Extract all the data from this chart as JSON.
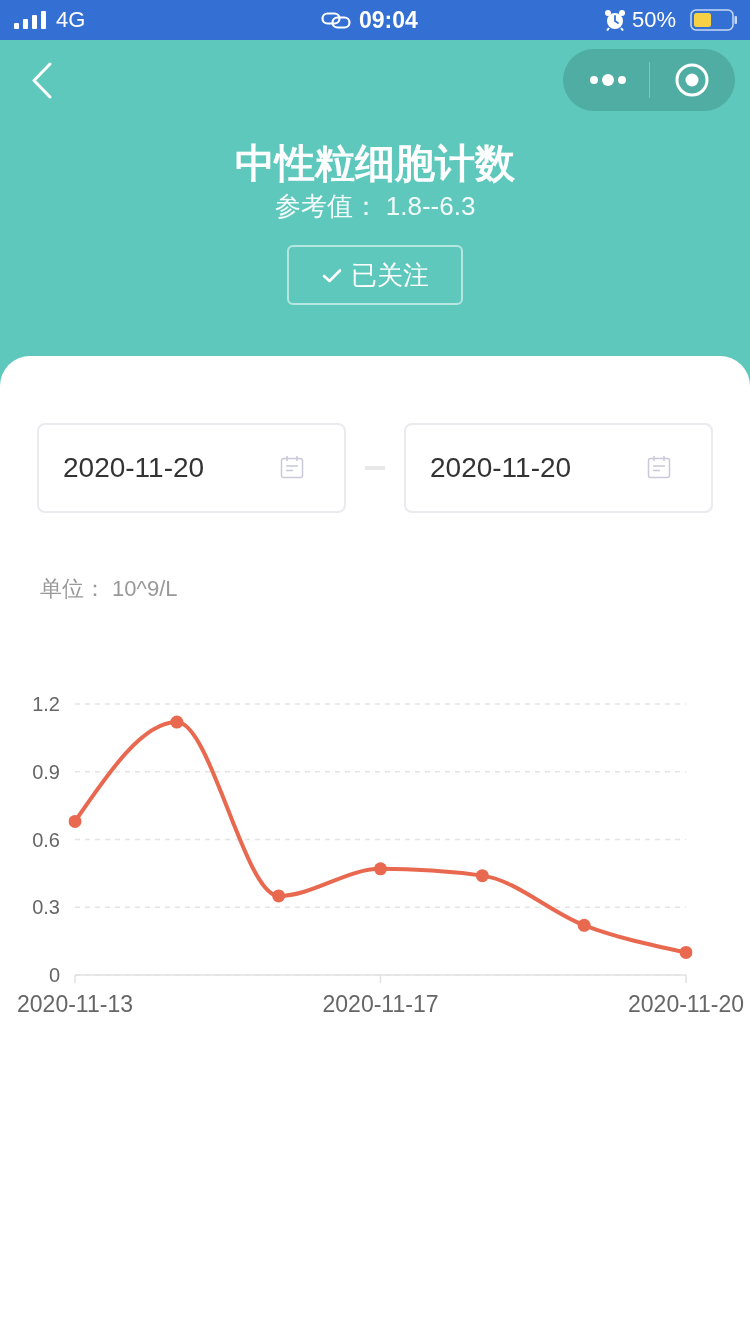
{
  "chart_data": {
    "type": "line",
    "title": "中性粒细胞计数",
    "subtitle": "参考值： 1.8--6.3",
    "ylabel": "单位： 10^9/L",
    "categories": [
      "2020-11-13",
      null,
      null,
      "2020-11-17",
      null,
      null,
      "2020-11-20"
    ],
    "series": [
      {
        "color": "#e8694f",
        "values": [
          0.68,
          1.12,
          0.35,
          0.47,
          0.44,
          0.22,
          0.1
        ]
      }
    ],
    "ylim": [
      0,
      1.2
    ],
    "yticks": [
      0,
      0.3,
      0.6,
      0.9,
      1.2
    ],
    "grid": "y",
    "marker": "circle",
    "line_style": "solid",
    "annotations": [
      "4G",
      "09:04",
      "50%",
      "已关注",
      "2020-11-20",
      "2020-11-20"
    ]
  }
}
